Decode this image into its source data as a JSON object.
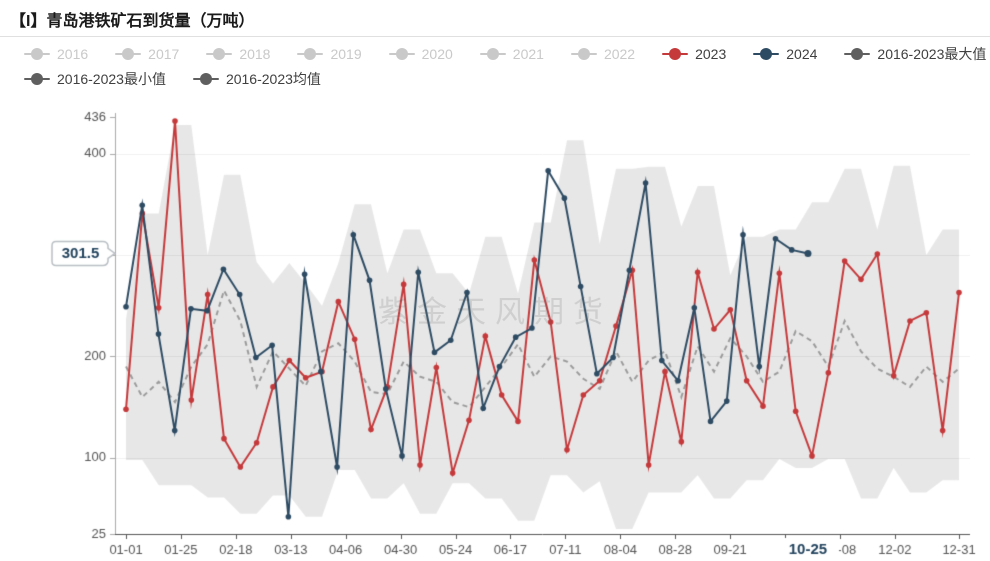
{
  "title": "【I】青岛港铁矿石到货量（万吨）",
  "watermark": "紫金天风期货",
  "legend": {
    "rows": [
      [
        {
          "label": "2016",
          "color": "#c9c9c9",
          "disabled": true
        },
        {
          "label": "2017",
          "color": "#c9c9c9",
          "disabled": true
        },
        {
          "label": "2018",
          "color": "#c9c9c9",
          "disabled": true
        },
        {
          "label": "2019",
          "color": "#c9c9c9",
          "disabled": true
        },
        {
          "label": "2020",
          "color": "#c9c9c9",
          "disabled": true
        },
        {
          "label": "2021",
          "color": "#c9c9c9",
          "disabled": true
        },
        {
          "label": "2022",
          "color": "#c9c9c9",
          "disabled": true
        },
        {
          "label": "2023",
          "color": "#c5393b",
          "disabled": false
        },
        {
          "label": "2024",
          "color": "#2d4b63",
          "disabled": false
        },
        {
          "label": "2016-2023最大值",
          "color": "#5f5f5f",
          "disabled": false
        }
      ],
      [
        {
          "label": "2016-2023最小值",
          "color": "#5f5f5f",
          "disabled": false
        },
        {
          "label": "2016-2023均值",
          "color": "#5f5f5f",
          "disabled": false
        }
      ]
    ]
  },
  "chart_data": {
    "type": "line",
    "title": "青岛港铁矿石到货量（万吨）",
    "xlabel": "",
    "ylabel": "万吨",
    "grid": true,
    "legend_position": "top",
    "y_axis": {
      "min": 25,
      "max": 436,
      "tick_labels": [
        "25",
        "100",
        "200",
        "300",
        "400",
        "436"
      ],
      "tick_values": [
        25,
        100,
        200,
        300,
        400,
        436
      ],
      "gridline_values": [
        100,
        200,
        300,
        400
      ]
    },
    "x_axis": {
      "days_span": 364,
      "ticks": [
        {
          "day": 0,
          "label": "01-01"
        },
        {
          "day": 24,
          "label": "01-25"
        },
        {
          "day": 48,
          "label": "02-18"
        },
        {
          "day": 72,
          "label": "03-13"
        },
        {
          "day": 96,
          "label": "04-06"
        },
        {
          "day": 120,
          "label": "04-30"
        },
        {
          "day": 144,
          "label": "05-24"
        },
        {
          "day": 168,
          "label": "06-17"
        },
        {
          "day": 192,
          "label": "07-11"
        },
        {
          "day": 216,
          "label": "08-04"
        },
        {
          "day": 240,
          "label": "08-28"
        },
        {
          "day": 264,
          "label": "09-21"
        },
        {
          "day": 288,
          "label": ""
        },
        {
          "day": 312,
          "label": "11-08"
        },
        {
          "day": 336,
          "label": "12-02"
        },
        {
          "day": 364,
          "label": "12-31"
        }
      ],
      "current_label": {
        "day": 298,
        "label": "10-25"
      }
    },
    "marker": {
      "value": 301.5,
      "label": "301.5"
    },
    "series": [
      {
        "name": "2016-2023最大值",
        "role": "band-max",
        "color": "#e6e6e6",
        "values": [
          237,
          341,
          341,
          428,
          428,
          300,
          379,
          379,
          293,
          272,
          292,
          272,
          250,
          292,
          350,
          350,
          282,
          325,
          325,
          282,
          282,
          262,
          318,
          318,
          262,
          332,
          332,
          413,
          413,
          311,
          385,
          385,
          387,
          387,
          328,
          368,
          368,
          280,
          318,
          318,
          325,
          325,
          352,
          352,
          385,
          385,
          325,
          388,
          388,
          300,
          325,
          325
        ]
      },
      {
        "name": "2016-2023最小值",
        "role": "band-min",
        "color": "#e6e6e6",
        "values": [
          98,
          98,
          73,
          73,
          73,
          61,
          61,
          45,
          45,
          63,
          63,
          42,
          42,
          88,
          88,
          60,
          60,
          75,
          45,
          45,
          75,
          75,
          60,
          60,
          38,
          38,
          83,
          83,
          66,
          77,
          30,
          30,
          66,
          66,
          66,
          83,
          60,
          60,
          78,
          78,
          99,
          90,
          90,
          99,
          99,
          60,
          60,
          90,
          66,
          66,
          78,
          78
        ]
      },
      {
        "name": "2016-2023均值",
        "role": "mean",
        "color": "#9b9b9b",
        "dashed": true,
        "values": [
          190,
          160,
          175,
          155,
          190,
          212,
          265,
          235,
          170,
          205,
          188,
          171,
          205,
          213,
          195,
          165,
          163,
          195,
          180,
          175,
          155,
          150,
          170,
          190,
          212,
          180,
          200,
          195,
          178,
          168,
          205,
          175,
          196,
          205,
          160,
          210,
          185,
          218,
          200,
          175,
          185,
          225,
          215,
          190,
          235,
          205,
          188,
          180,
          170,
          190,
          175,
          188
        ]
      },
      {
        "name": "2023",
        "role": "line",
        "color": "#c5393b",
        "end_day": 364,
        "values": [
          148,
          341,
          248,
          432,
          157,
          261,
          119,
          91,
          115,
          170,
          196,
          179,
          185,
          254,
          217,
          128,
          170,
          271,
          93,
          189,
          85,
          137,
          220,
          162,
          136,
          295,
          234,
          108,
          162,
          176,
          230,
          285,
          93,
          185,
          116,
          283,
          227,
          246,
          176,
          151,
          282,
          146,
          102,
          184,
          294,
          276,
          301,
          181,
          235,
          243,
          127,
          263
        ]
      },
      {
        "name": "2024",
        "role": "line",
        "color": "#2d4b63",
        "end_day": 298,
        "values": [
          249,
          349,
          222,
          127,
          247,
          245,
          286,
          261,
          199,
          211,
          42,
          281,
          185,
          91,
          320,
          275,
          168,
          102,
          283,
          204,
          216,
          263,
          149,
          190,
          219,
          228,
          383,
          356,
          269,
          183,
          199,
          285,
          371,
          196,
          176,
          248,
          136,
          156,
          320,
          190,
          316,
          305,
          301.5
        ]
      }
    ]
  },
  "style": {
    "accent_red": "#c5393b",
    "accent_navy": "#2d4b63",
    "band_gray": "#e6e6e6",
    "grid_color": "#f0f0f0",
    "axis_color": "#555555",
    "y_axis_color": "#aaaaaa",
    "label_color": "#555555",
    "highlight_text": "#24455f"
  }
}
